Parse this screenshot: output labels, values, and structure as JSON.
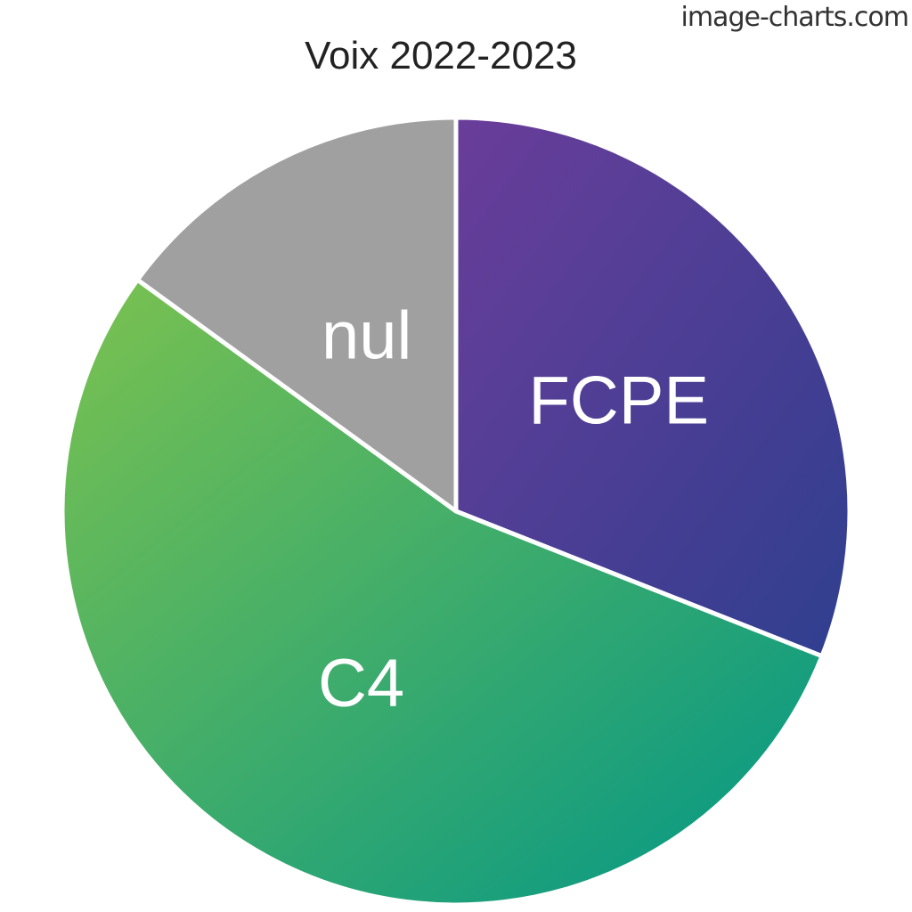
{
  "watermark": "image-charts.com",
  "chart_data": {
    "type": "pie",
    "title": "Voix 2022-2023",
    "slices": [
      {
        "label": "FCPE",
        "value": 31,
        "gradient": [
          "#6a3d9a",
          "#2f3f8f"
        ]
      },
      {
        "label": "C4",
        "value": 54,
        "gradient": [
          "#7cc24f",
          "#009688"
        ]
      },
      {
        "label": "nul",
        "value": 15,
        "gradient": [
          "#a0a0a0",
          "#a0a0a0"
        ]
      }
    ],
    "start_angle": "12 o'clock",
    "direction": "clockwise",
    "legend": "none"
  }
}
